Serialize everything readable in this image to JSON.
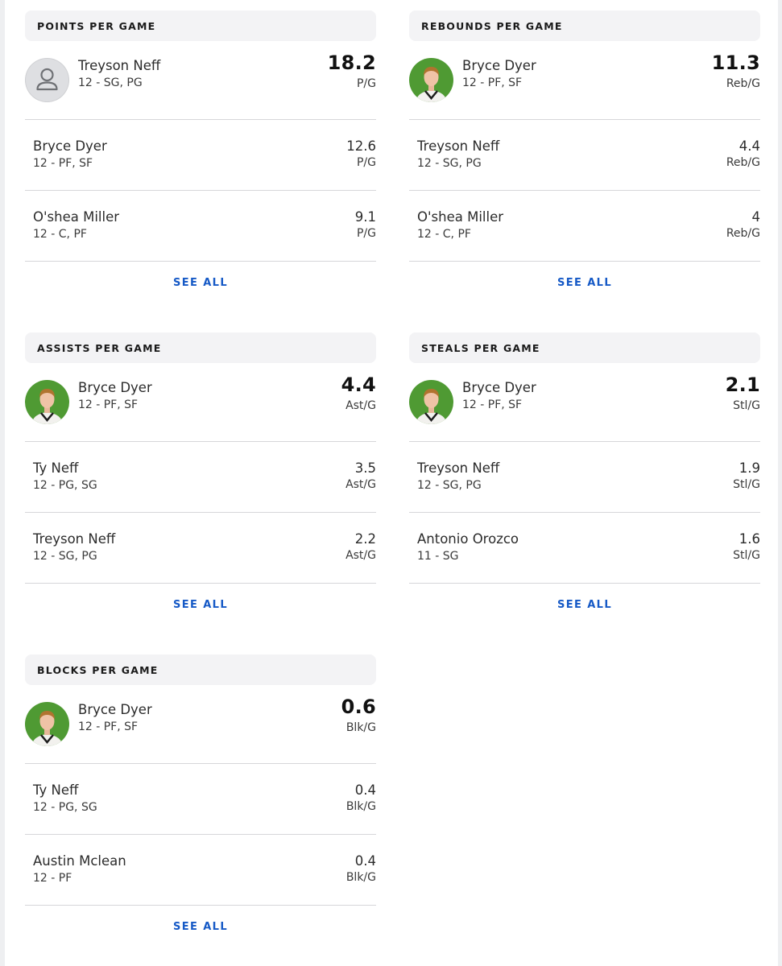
{
  "colors": {
    "accent": "#1559c6",
    "header_bg": "#f3f3f5",
    "divider": "#d6d6d9",
    "avatar_green": "#4f9a33"
  },
  "cards": [
    {
      "title": "POINTS PER GAME",
      "see_all": "SEE ALL",
      "leader": {
        "name": "Treyson Neff",
        "meta": "12 - SG, PG",
        "value": "18.2",
        "unit": "P/G",
        "avatar": "placeholder-person-icon"
      },
      "rows": [
        {
          "name": "Bryce Dyer",
          "meta": "12 - PF, SF",
          "value": "12.6",
          "unit": "P/G"
        },
        {
          "name": "O'shea Miller",
          "meta": "12 - C, PF",
          "value": "9.1",
          "unit": "P/G"
        }
      ]
    },
    {
      "title": "REBOUNDS PER GAME",
      "see_all": "SEE ALL",
      "leader": {
        "name": "Bryce Dyer",
        "meta": "12 - PF, SF",
        "value": "11.3",
        "unit": "Reb/G",
        "avatar": "player-photo"
      },
      "rows": [
        {
          "name": "Treyson Neff",
          "meta": "12 - SG, PG",
          "value": "4.4",
          "unit": "Reb/G"
        },
        {
          "name": "O'shea Miller",
          "meta": "12 - C, PF",
          "value": "4",
          "unit": "Reb/G"
        }
      ]
    },
    {
      "title": "ASSISTS PER GAME",
      "see_all": "SEE ALL",
      "leader": {
        "name": "Bryce Dyer",
        "meta": "12 - PF, SF",
        "value": "4.4",
        "unit": "Ast/G",
        "avatar": "player-photo"
      },
      "rows": [
        {
          "name": "Ty Neff",
          "meta": "12 - PG, SG",
          "value": "3.5",
          "unit": "Ast/G"
        },
        {
          "name": "Treyson Neff",
          "meta": "12 - SG, PG",
          "value": "2.2",
          "unit": "Ast/G"
        }
      ]
    },
    {
      "title": "STEALS PER GAME",
      "see_all": "SEE ALL",
      "leader": {
        "name": "Bryce Dyer",
        "meta": "12 - PF, SF",
        "value": "2.1",
        "unit": "Stl/G",
        "avatar": "player-photo"
      },
      "rows": [
        {
          "name": "Treyson Neff",
          "meta": "12 - SG, PG",
          "value": "1.9",
          "unit": "Stl/G"
        },
        {
          "name": "Antonio Orozco",
          "meta": "11 - SG",
          "value": "1.6",
          "unit": "Stl/G"
        }
      ]
    },
    {
      "title": "BLOCKS PER GAME",
      "see_all": "SEE ALL",
      "leader": {
        "name": "Bryce Dyer",
        "meta": "12 - PF, SF",
        "value": "0.6",
        "unit": "Blk/G",
        "avatar": "player-photo"
      },
      "rows": [
        {
          "name": "Ty Neff",
          "meta": "12 - PG, SG",
          "value": "0.4",
          "unit": "Blk/G"
        },
        {
          "name": "Austin Mclean",
          "meta": "12 - PF",
          "value": "0.4",
          "unit": "Blk/G"
        }
      ]
    }
  ]
}
